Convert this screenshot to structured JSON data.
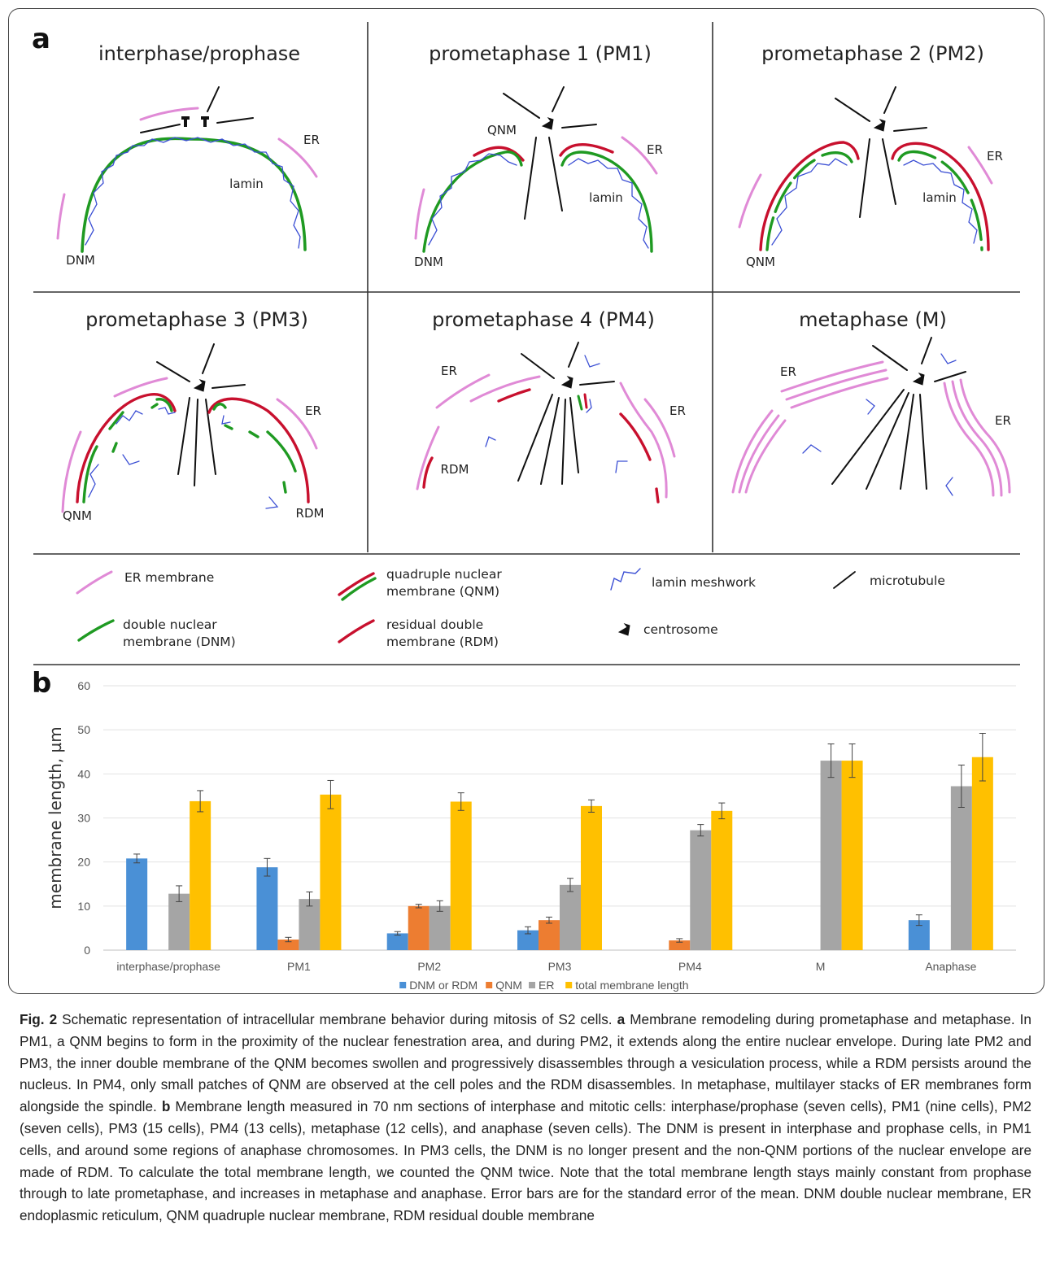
{
  "panel_a": {
    "letter": "a",
    "panels": [
      {
        "title": "interphase/prophase",
        "labels": [
          "ER",
          "lamin",
          "DNM"
        ]
      },
      {
        "title": "prometaphase 1 (PM1)",
        "labels": [
          "QNM",
          "ER",
          "lamin",
          "DNM"
        ]
      },
      {
        "title": "prometaphase 2 (PM2)",
        "labels": [
          "ER",
          "lamin",
          "QNM"
        ]
      },
      {
        "title": "prometaphase 3 (PM3)",
        "labels": [
          "ER",
          "QNM",
          "RDM"
        ]
      },
      {
        "title": "prometaphase 4 (PM4)",
        "labels": [
          "ER",
          "ER",
          "RDM"
        ]
      },
      {
        "title": "metaphase (M)",
        "labels": [
          "ER",
          "ER"
        ]
      }
    ],
    "legend": {
      "er_membrane": "ER membrane",
      "qnm_line1": "quadruple nuclear",
      "qnm_line2": "membrane (QNM)",
      "lamin": "lamin meshwork",
      "microtubule": "microtubule",
      "dnm_line1": "double nuclear",
      "dnm_line2": "membrane (DNM)",
      "rdm_line1": "residual double",
      "rdm_line2": "membrane (RDM)",
      "centrosome": "centrosome"
    },
    "colors": {
      "er": "#e08ad6",
      "dnm": "#1f9a22",
      "rdm": "#c8102e",
      "lamin": "#3b4fd4",
      "microtubule": "#111111"
    }
  },
  "panel_b": {
    "letter": "b",
    "chart_data": {
      "type": "bar",
      "ylabel": "membrane length, µm",
      "ylim": [
        0,
        60
      ],
      "yticks": [
        "0",
        "10",
        "20",
        "30",
        "40",
        "50",
        "60"
      ],
      "grid": true,
      "legend_position": "bottom",
      "categories": [
        "interphase/prophase",
        "PM1",
        "PM2",
        "PM3",
        "PM4",
        "M",
        "Anaphase"
      ],
      "series": [
        {
          "name": "DNM or RDM",
          "color": "#4a90d6",
          "values": [
            20.8,
            18.8,
            3.8,
            4.5,
            null,
            null,
            6.8
          ],
          "errors": [
            1.0,
            2.0,
            0.4,
            0.8,
            null,
            null,
            1.2
          ]
        },
        {
          "name": "QNM",
          "color": "#ed7d31",
          "values": [
            null,
            2.4,
            10.0,
            6.8,
            2.2,
            null,
            null
          ],
          "errors": [
            null,
            0.5,
            0.4,
            0.7,
            0.4,
            null,
            null
          ]
        },
        {
          "name": "ER",
          "color": "#a5a5a5",
          "values": [
            12.8,
            11.6,
            10.0,
            14.8,
            27.2,
            43.0,
            37.2
          ],
          "errors": [
            1.8,
            1.6,
            1.2,
            1.5,
            1.3,
            3.8,
            4.8
          ]
        },
        {
          "name": "total membrane length",
          "color": "#ffc000",
          "values": [
            33.8,
            35.3,
            33.7,
            32.7,
            31.6,
            43.0,
            43.8
          ],
          "errors": [
            2.4,
            3.2,
            2.0,
            1.4,
            1.8,
            3.8,
            5.4
          ]
        }
      ]
    }
  },
  "caption": {
    "fig_label": "Fig. 2",
    "intro": " Schematic representation of intracellular membrane behavior during mitosis of S2 cells. ",
    "a_label": "a",
    "a_text": " Membrane remodeling during prometaphase and metaphase. In PM1, a QNM begins to form in the proximity of the nuclear fenestration area, and during PM2, it extends along the entire nuclear envelope. During late PM2 and PM3, the inner double membrane of the QNM becomes swollen and progressively disassembles through a vesiculation process, while a RDM persists around the nucleus. In PM4, only small patches of QNM are observed at the cell poles and the RDM disassembles. In metaphase, multilayer stacks of ER membranes form alongside the spindle. ",
    "b_label": "b",
    "b_text": " Membrane length measured in 70 nm sections of interphase and mitotic cells: interphase/prophase (seven cells), PM1 (nine cells), PM2 (seven cells), PM3 (15 cells), PM4 (13 cells), metaphase (12 cells), and anaphase (seven cells). The DNM is present in interphase and prophase cells, in PM1 cells, and around some regions of anaphase chromosomes. In PM3 cells, the DNM is no longer present and the non-QNM portions of the nuclear envelope are made of RDM. To calculate the total membrane length, we counted the QNM twice. Note that the total membrane length stays mainly constant from prophase through to late prometaphase, and increases in metaphase and anaphase. Error bars are for the standard error of the mean. DNM double nuclear membrane, ER endoplasmic reticulum, QNM quadruple nuclear membrane, RDM residual double membrane"
  }
}
